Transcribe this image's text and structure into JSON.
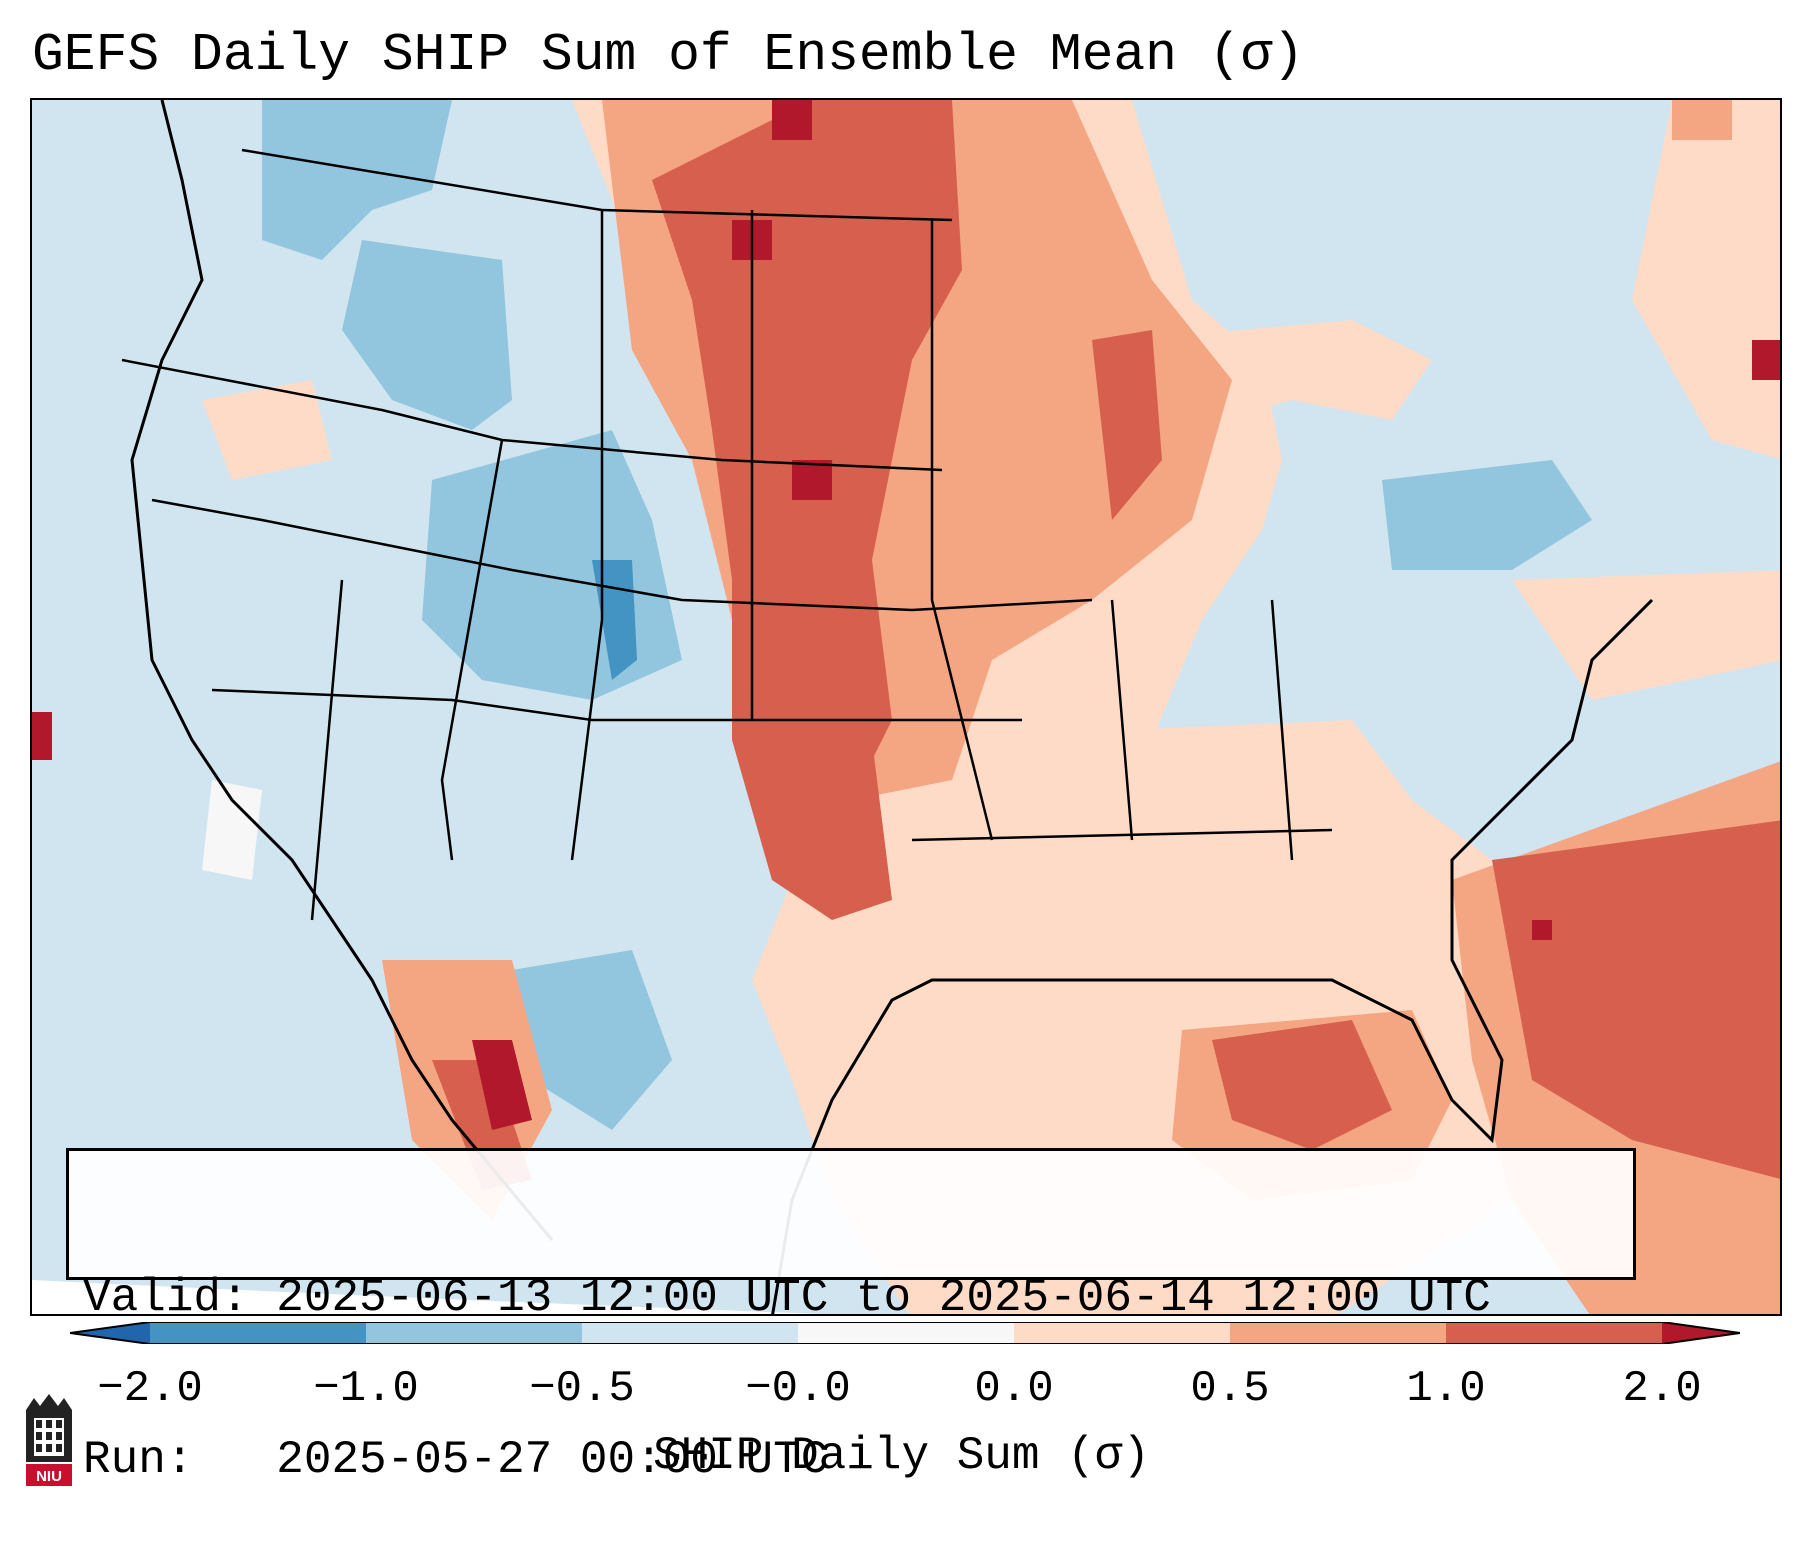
{
  "title": "GEFS Daily SHIP Sum of Ensemble Mean (σ)",
  "info": {
    "valid_line": "Valid: 2025-06-13 12:00 UTC to 2025-06-14 12:00 UTC",
    "run_line": "Run:   2025-05-27 00:00 UTC"
  },
  "colorbar": {
    "label": "SHIP Daily Sum (σ)",
    "ticks": [
      "−2.0",
      "−1.0",
      "−0.5",
      "−0.0",
      "0.0",
      "0.5",
      "1.0",
      "2.0"
    ],
    "bins": [
      {
        "range": "below -2.0",
        "color": "#2166ac"
      },
      {
        "range": "-2.0 to -1.0",
        "color": "#4393c3"
      },
      {
        "range": "-1.0 to -0.5",
        "color": "#92c5de"
      },
      {
        "range": "-0.5 to -0.0",
        "color": "#d1e5f0"
      },
      {
        "range": "-0.0 to 0.0",
        "color": "#f7f7f7"
      },
      {
        "range": "0.0 to 0.5",
        "color": "#fddbc7"
      },
      {
        "range": "0.5 to 1.0",
        "color": "#f4a582"
      },
      {
        "range": "1.0 to 2.0",
        "color": "#d6604d"
      },
      {
        "range": "above 2.0",
        "color": "#b2182b"
      }
    ]
  },
  "map": {
    "region": "Continental United States",
    "high_regions": [
      "Dakotas",
      "Nebraska",
      "Kansas",
      "Oklahoma",
      "western Atlantic"
    ],
    "colors": {
      "deep_blue": "#4393c3",
      "mid_blue": "#92c5de",
      "light_blue": "#d1e5f0",
      "white": "#f7f7f7",
      "light_red": "#fddbc7",
      "mid_red": "#f4a582",
      "red": "#d6604d",
      "dark_red": "#b2182b"
    }
  },
  "logo": {
    "icon": "niu-logo-icon",
    "text": "NIU"
  }
}
